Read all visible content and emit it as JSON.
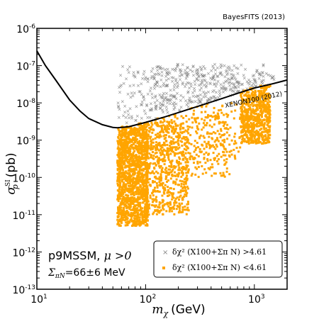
{
  "credit": "BayesFITS (2013)",
  "chart_data": {
    "type": "scatter",
    "xscale": "log",
    "yscale": "log",
    "xlim": [
      10,
      2000
    ],
    "ylim": [
      1e-13,
      1e-06
    ],
    "xlabel_sym": "m",
    "xlabel_sub": "χ",
    "xlabel_unit": "(GeV)",
    "ylabel_sym": "σ",
    "ylabel_sup": "SI",
    "ylabel_sub": "p",
    "ylabel_unit": "(pb)",
    "x_ticks": [
      {
        "value": 10,
        "base": "10",
        "exp": "1"
      },
      {
        "value": 100,
        "base": "10",
        "exp": "2"
      },
      {
        "value": 1000,
        "base": "10",
        "exp": "3"
      }
    ],
    "y_ticks": [
      {
        "value": 1e-13,
        "base": "10",
        "exp": "-13"
      },
      {
        "value": 1e-12,
        "base": "10",
        "exp": "-12"
      },
      {
        "value": 1e-11,
        "base": "10",
        "exp": "-11"
      },
      {
        "value": 1e-10,
        "base": "10",
        "exp": "-10"
      },
      {
        "value": 1e-09,
        "base": "10",
        "exp": "-9"
      },
      {
        "value": 1e-08,
        "base": "10",
        "exp": "-8"
      },
      {
        "value": 1e-07,
        "base": "10",
        "exp": "-7"
      },
      {
        "value": 1e-06,
        "base": "10",
        "exp": "-6"
      }
    ],
    "limit_curve": {
      "label": "XENON100 (2012)",
      "color": "#000000",
      "points": [
        [
          10,
          2.5e-07
        ],
        [
          12,
          1e-07
        ],
        [
          15,
          4e-08
        ],
        [
          20,
          1.2e-08
        ],
        [
          25,
          6e-09
        ],
        [
          30,
          3.8e-09
        ],
        [
          40,
          2.6e-09
        ],
        [
          50,
          2.2e-09
        ],
        [
          55,
          2.15e-09
        ],
        [
          70,
          2.3e-09
        ],
        [
          100,
          3e-09
        ],
        [
          150,
          4.2e-09
        ],
        [
          200,
          5.5e-09
        ],
        [
          300,
          8e-09
        ],
        [
          500,
          1.3e-08
        ],
        [
          700,
          1.8e-08
        ],
        [
          1000,
          2.5e-08
        ],
        [
          1500,
          3.3e-08
        ],
        [
          2000,
          4.1e-08
        ]
      ]
    },
    "series": [
      {
        "name": "excluded",
        "legend_text": "δχ² (X100+Σ_πN) >4.61",
        "marker": "x",
        "color": "#888888",
        "regions": [
          {
            "xr": [
              55,
              700
            ],
            "yr": [
              2.5e-09,
              1e-07
            ],
            "n": 320
          },
          {
            "xr": [
              120,
              1300
            ],
            "yr": [
              6e-09,
              1.2e-07
            ],
            "n": 260
          },
          {
            "xr": [
              600,
              1600
            ],
            "yr": [
              2e-08,
              6e-08
            ],
            "n": 60
          }
        ]
      },
      {
        "name": "allowed",
        "legend_text": "δχ² (X100+Σ_πN) <4.61",
        "marker": "square",
        "color": "#FFA500",
        "regions": [
          {
            "xr": [
              55,
              105
            ],
            "yr": [
              5e-12,
              2e-09
            ],
            "n": 1400
          },
          {
            "xr": [
              55,
              100
            ],
            "yr": [
              2e-09,
              1e-08
            ],
            "n": 180
          },
          {
            "xr": [
              100,
              250
            ],
            "yr": [
              1e-11,
              3e-09
            ],
            "n": 600
          },
          {
            "xr": [
              100,
              600
            ],
            "yr": [
              1e-10,
              5e-09
            ],
            "n": 300
          },
          {
            "xr": [
              250,
              750
            ],
            "yr": [
              3e-10,
              1e-08
            ],
            "n": 120
          },
          {
            "xr": [
              750,
              1400
            ],
            "yr": [
              8e-10,
              3e-08
            ],
            "n": 700
          }
        ]
      }
    ],
    "annotations": {
      "model": "p9MSSM, ",
      "model_math": "μ >0",
      "sigma_sym": "Σ",
      "sigma_sub": "πN",
      "sigma_value": "=66±6 MeV"
    },
    "legend": {
      "position": "lower-right",
      "excluded_label": "δχ² (X100+Σπ N) >4.61",
      "allowed_label": "δχ² (X100+Σπ N) <4.61"
    },
    "colors": {
      "excluded": "#888888",
      "allowed": "#FFA500",
      "curve": "#000000"
    },
    "grid": false
  }
}
